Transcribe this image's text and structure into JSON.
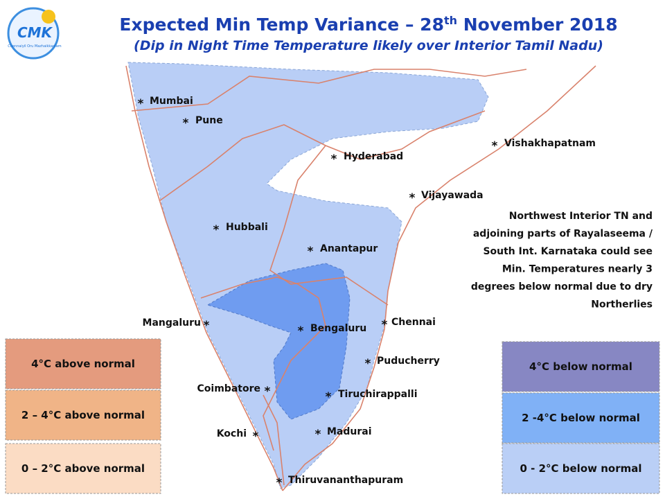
{
  "header": {
    "title": {
      "before": "Expected Min Temp Variance – 28",
      "sup": "th",
      "after": " November 2018"
    },
    "subtitle": "(Dip in Night Time Temperature likely over Interior Tamil Nadu)",
    "logo": "CMK",
    "logo_tagline": "Chennaiyil Oru Mazhaikkaalam"
  },
  "marker": "*",
  "cities": [
    {
      "name": "Mumbai"
    },
    {
      "name": "Pune"
    },
    {
      "name": "Hyderabad"
    },
    {
      "name": "Vishakhapatnam"
    },
    {
      "name": "Vijayawada"
    },
    {
      "name": "Hubbali"
    },
    {
      "name": "Anantapur"
    },
    {
      "name": "Mangaluru"
    },
    {
      "name": "Bengaluru"
    },
    {
      "name": "Chennai"
    },
    {
      "name": "Puducherry"
    },
    {
      "name": "Coimbatore"
    },
    {
      "name": "Tiruchirappalli"
    },
    {
      "name": "Kochi"
    },
    {
      "name": "Madurai"
    },
    {
      "name": "Thiruvananthapuram"
    }
  ],
  "annotation": [
    "Northwest Interior TN and",
    "adjoining parts of Rayalaseema /",
    "South Int. Karnataka could see",
    "Min. Temperatures nearly 3",
    "degrees below normal due to dry",
    "Northerlies"
  ],
  "legend_above": [
    {
      "label": "4°C above normal",
      "color": "#e49b7e"
    },
    {
      "label": "2 – 4°C above normal",
      "color": "#f0b487"
    },
    {
      "label": "0 – 2°C above normal",
      "color": "#fbdcc4"
    }
  ],
  "legend_below": [
    {
      "label": "4°C  below normal",
      "color": "#8787c3"
    },
    {
      "label": "2 -4°C below normal",
      "color": "#80b1f6"
    },
    {
      "label": "0 - 2°C below normal",
      "color": "#bacff6"
    }
  ]
}
